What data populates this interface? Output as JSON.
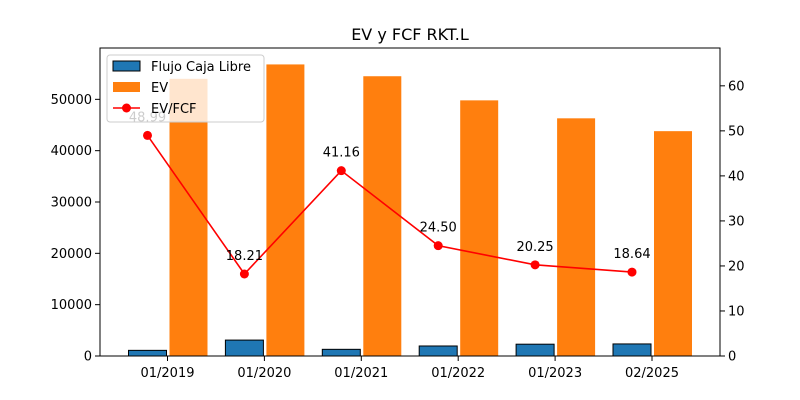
{
  "chart_data": {
    "type": "bar",
    "title": "EV y FCF RKT.L",
    "categories": [
      "01/2019",
      "01/2020",
      "01/2021",
      "01/2022",
      "01/2023",
      "02/2025"
    ],
    "series": [
      {
        "name": "Flujo Caja Libre",
        "type": "bar",
        "axis": "left",
        "color": "#1f77b4",
        "values": [
          1100,
          3100,
          1300,
          1950,
          2300,
          2350
        ]
      },
      {
        "name": "EV",
        "type": "bar",
        "axis": "left",
        "color": "#ff7f0e",
        "values": [
          54000,
          56800,
          54500,
          49800,
          46300,
          43800
        ]
      },
      {
        "name": "EV/FCF",
        "type": "line",
        "axis": "right",
        "color": "#ff0000",
        "values": [
          48.99,
          18.21,
          41.16,
          24.5,
          20.25,
          18.64
        ],
        "labels": [
          "48.99",
          "18.21",
          "41.16",
          "24.50",
          "20.25",
          "18.64"
        ]
      }
    ],
    "ylim_left": [
      0,
      60000
    ],
    "yticks_left": [
      "0",
      "10000",
      "20000",
      "30000",
      "40000",
      "50000"
    ],
    "ylim_right": [
      0,
      68.4
    ],
    "yticks_right": [
      "0",
      "10",
      "20",
      "30",
      "40",
      "50",
      "60"
    ],
    "legend_position": "top-left",
    "grid": false
  }
}
